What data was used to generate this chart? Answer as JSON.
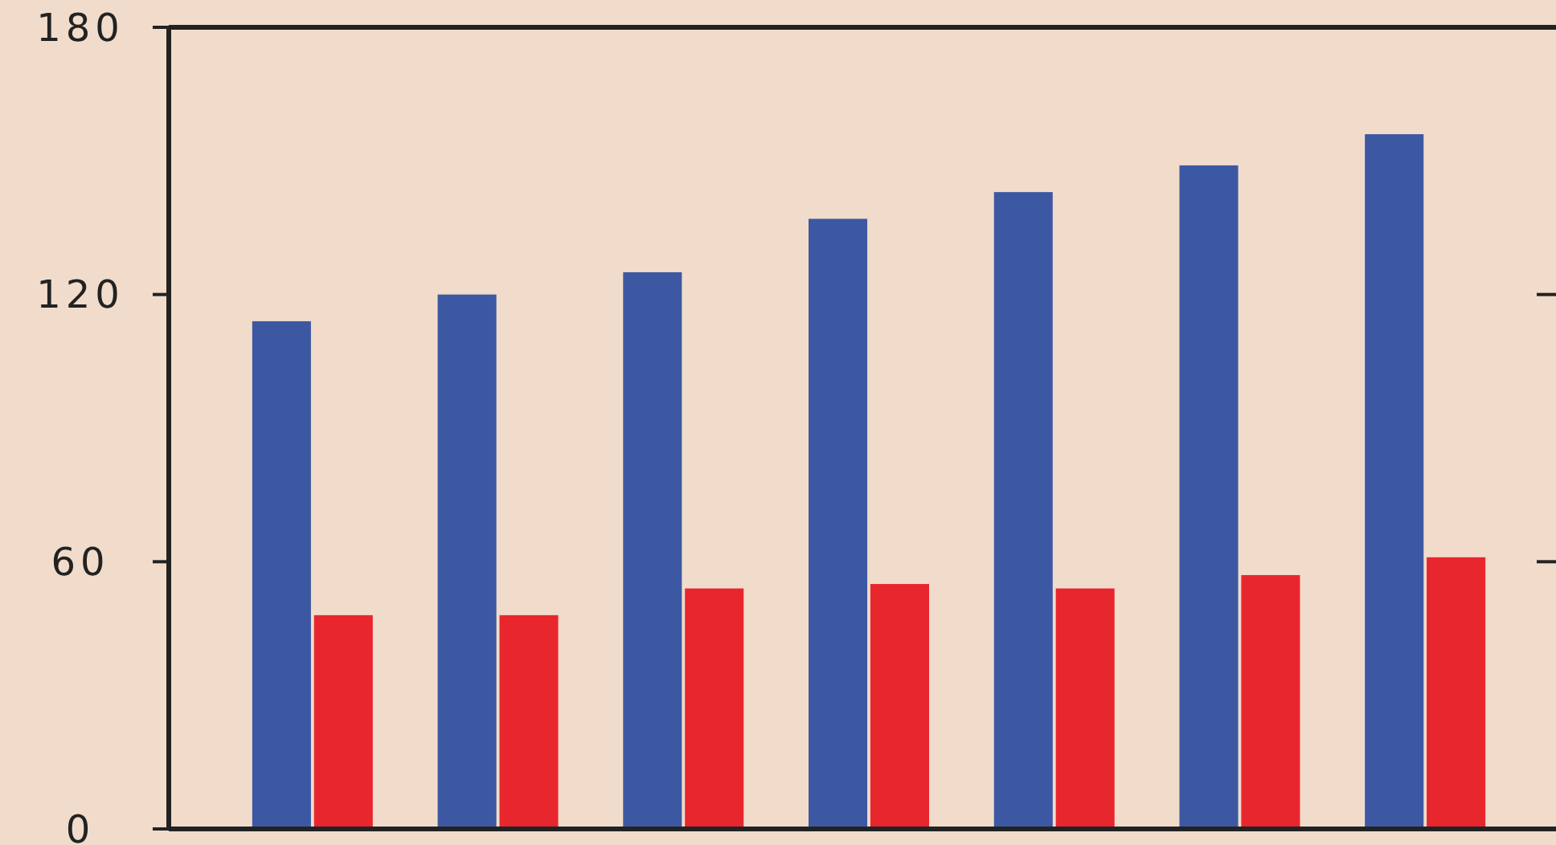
{
  "chart_data": {
    "type": "bar",
    "categories": [
      null,
      null,
      null,
      null,
      null,
      null,
      null
    ],
    "series": [
      {
        "color": "#3d58a3",
        "values": [
          114,
          120,
          125,
          137,
          143,
          149,
          156
        ]
      },
      {
        "color": "#e8262d",
        "values": [
          48,
          48,
          54,
          55,
          54,
          57,
          61
        ]
      }
    ],
    "ylim": [
      0,
      180
    ],
    "yticks": [
      0,
      60,
      120,
      180
    ],
    "grid": false
  }
}
